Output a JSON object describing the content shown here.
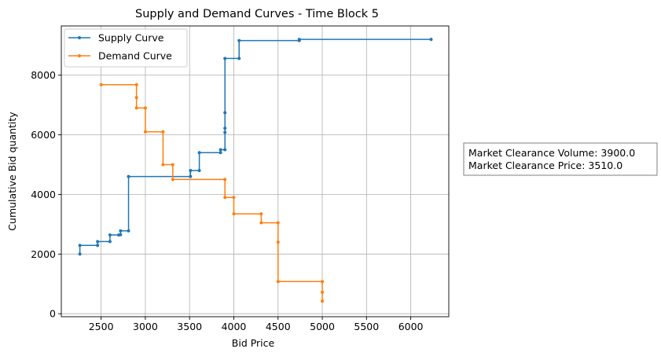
{
  "chart_data": {
    "type": "line",
    "title": "Supply and Demand Curves - Time Block 5",
    "xlabel": "Bid Price",
    "ylabel": "Cumulative Bid quantity",
    "xlim": [
      2050,
      6430
    ],
    "ylim": [
      -100,
      9650
    ],
    "xticks": [
      2500,
      3000,
      3500,
      4000,
      4500,
      5000,
      5500,
      6000
    ],
    "yticks": [
      0,
      2000,
      4000,
      6000,
      8000
    ],
    "grid": true,
    "legend_position": "top-left",
    "step_style": "post",
    "series": [
      {
        "name": "Supply Curve",
        "color": "#1f77b4",
        "points": [
          [
            2260,
            2000
          ],
          [
            2260,
            2290
          ],
          [
            2460,
            2290
          ],
          [
            2460,
            2420
          ],
          [
            2600,
            2420
          ],
          [
            2600,
            2640
          ],
          [
            2700,
            2640
          ],
          [
            2720,
            2650
          ],
          [
            2720,
            2780
          ],
          [
            2810,
            2780
          ],
          [
            2810,
            4600
          ],
          [
            3510,
            4600
          ],
          [
            3510,
            4800
          ],
          [
            3610,
            4800
          ],
          [
            3610,
            5400
          ],
          [
            3850,
            5400
          ],
          [
            3850,
            5500
          ],
          [
            3900,
            5500
          ],
          [
            3900,
            6080
          ],
          [
            3900,
            6220
          ],
          [
            3900,
            6740
          ],
          [
            3900,
            8560
          ],
          [
            4060,
            8560
          ],
          [
            4060,
            9160
          ],
          [
            4740,
            9160
          ],
          [
            4740,
            9200
          ],
          [
            6230,
            9200
          ]
        ]
      },
      {
        "name": "Demand Curve",
        "color": "#ff7f0e",
        "points": [
          [
            2500,
            7680
          ],
          [
            2900,
            7680
          ],
          [
            2900,
            7250
          ],
          [
            2900,
            6900
          ],
          [
            3000,
            6900
          ],
          [
            3000,
            6100
          ],
          [
            3200,
            6100
          ],
          [
            3200,
            5000
          ],
          [
            3310,
            5000
          ],
          [
            3310,
            4500
          ],
          [
            3900,
            4500
          ],
          [
            3900,
            3900
          ],
          [
            4000,
            3900
          ],
          [
            4000,
            3350
          ],
          [
            4310,
            3350
          ],
          [
            4310,
            3050
          ],
          [
            4500,
            3050
          ],
          [
            4500,
            2400
          ],
          [
            4500,
            1080
          ],
          [
            5000,
            1080
          ],
          [
            5000,
            720
          ],
          [
            5000,
            420
          ]
        ]
      }
    ],
    "annotation": {
      "line1": "Market Clearance Volume: 3900.0",
      "line2": "Market Clearance Price: 3510.0"
    }
  }
}
